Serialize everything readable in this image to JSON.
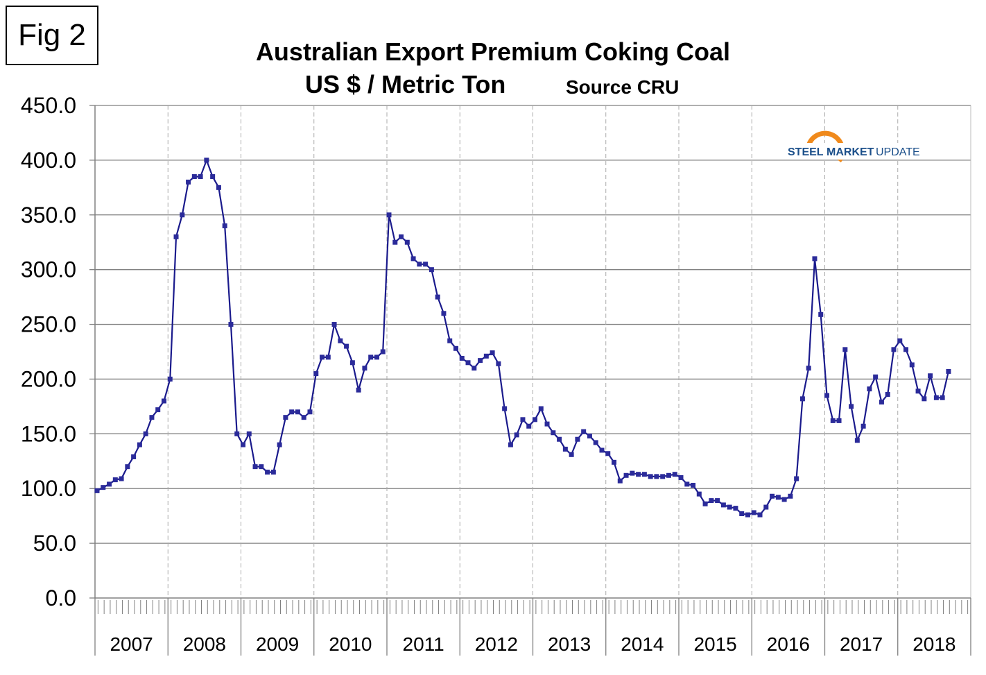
{
  "figure_label": "Fig 2",
  "logo_text": "STEEL MARKET UPDATE",
  "chart_data": {
    "type": "line",
    "title": "Australian Export Premium Coking Coal",
    "subtitle": "US $ / Metric Ton",
    "source": "Source CRU",
    "xlabel": "",
    "ylabel": "",
    "ylim": [
      0,
      450
    ],
    "yticks": [
      "0.0",
      "50.0",
      "100.0",
      "150.0",
      "200.0",
      "250.0",
      "300.0",
      "350.0",
      "400.0",
      "450.0"
    ],
    "years": [
      "2007",
      "2008",
      "2009",
      "2010",
      "2011",
      "2012",
      "2013",
      "2014",
      "2015",
      "2016",
      "2017",
      "2018"
    ],
    "x_start": "2007-01",
    "frequency": "monthly",
    "grid": true,
    "legend": "none",
    "series": [
      {
        "name": "Premium Coking Coal",
        "color": "#1a1a8c",
        "values": [
          98,
          101,
          104,
          108,
          109,
          120,
          129,
          140,
          150,
          165,
          172,
          180,
          200,
          330,
          350,
          380,
          385,
          385,
          400,
          385,
          375,
          340,
          250,
          150,
          140,
          150,
          120,
          120,
          115,
          115,
          140,
          165,
          170,
          170,
          165,
          170,
          205,
          220,
          220,
          250,
          235,
          230,
          215,
          190,
          210,
          220,
          220,
          225,
          350,
          325,
          330,
          325,
          310,
          305,
          305,
          300,
          275,
          260,
          235,
          228,
          219,
          215,
          210,
          217,
          221,
          224,
          214,
          173,
          140,
          149,
          163,
          157,
          163,
          173,
          159,
          151,
          145,
          136,
          131,
          145,
          152,
          148,
          142,
          135,
          132,
          124,
          107,
          112,
          114,
          113,
          113,
          111,
          111,
          111,
          112,
          113,
          110,
          104,
          103,
          95,
          86,
          89,
          89,
          85,
          83,
          82,
          77,
          76,
          78,
          76,
          83,
          93,
          92,
          90,
          93,
          109,
          182,
          210,
          310,
          259,
          185,
          162,
          162,
          227,
          175,
          144,
          157,
          191,
          202,
          179,
          186,
          227,
          235,
          227,
          213,
          189,
          182,
          203,
          183,
          183,
          207
        ]
      }
    ]
  }
}
